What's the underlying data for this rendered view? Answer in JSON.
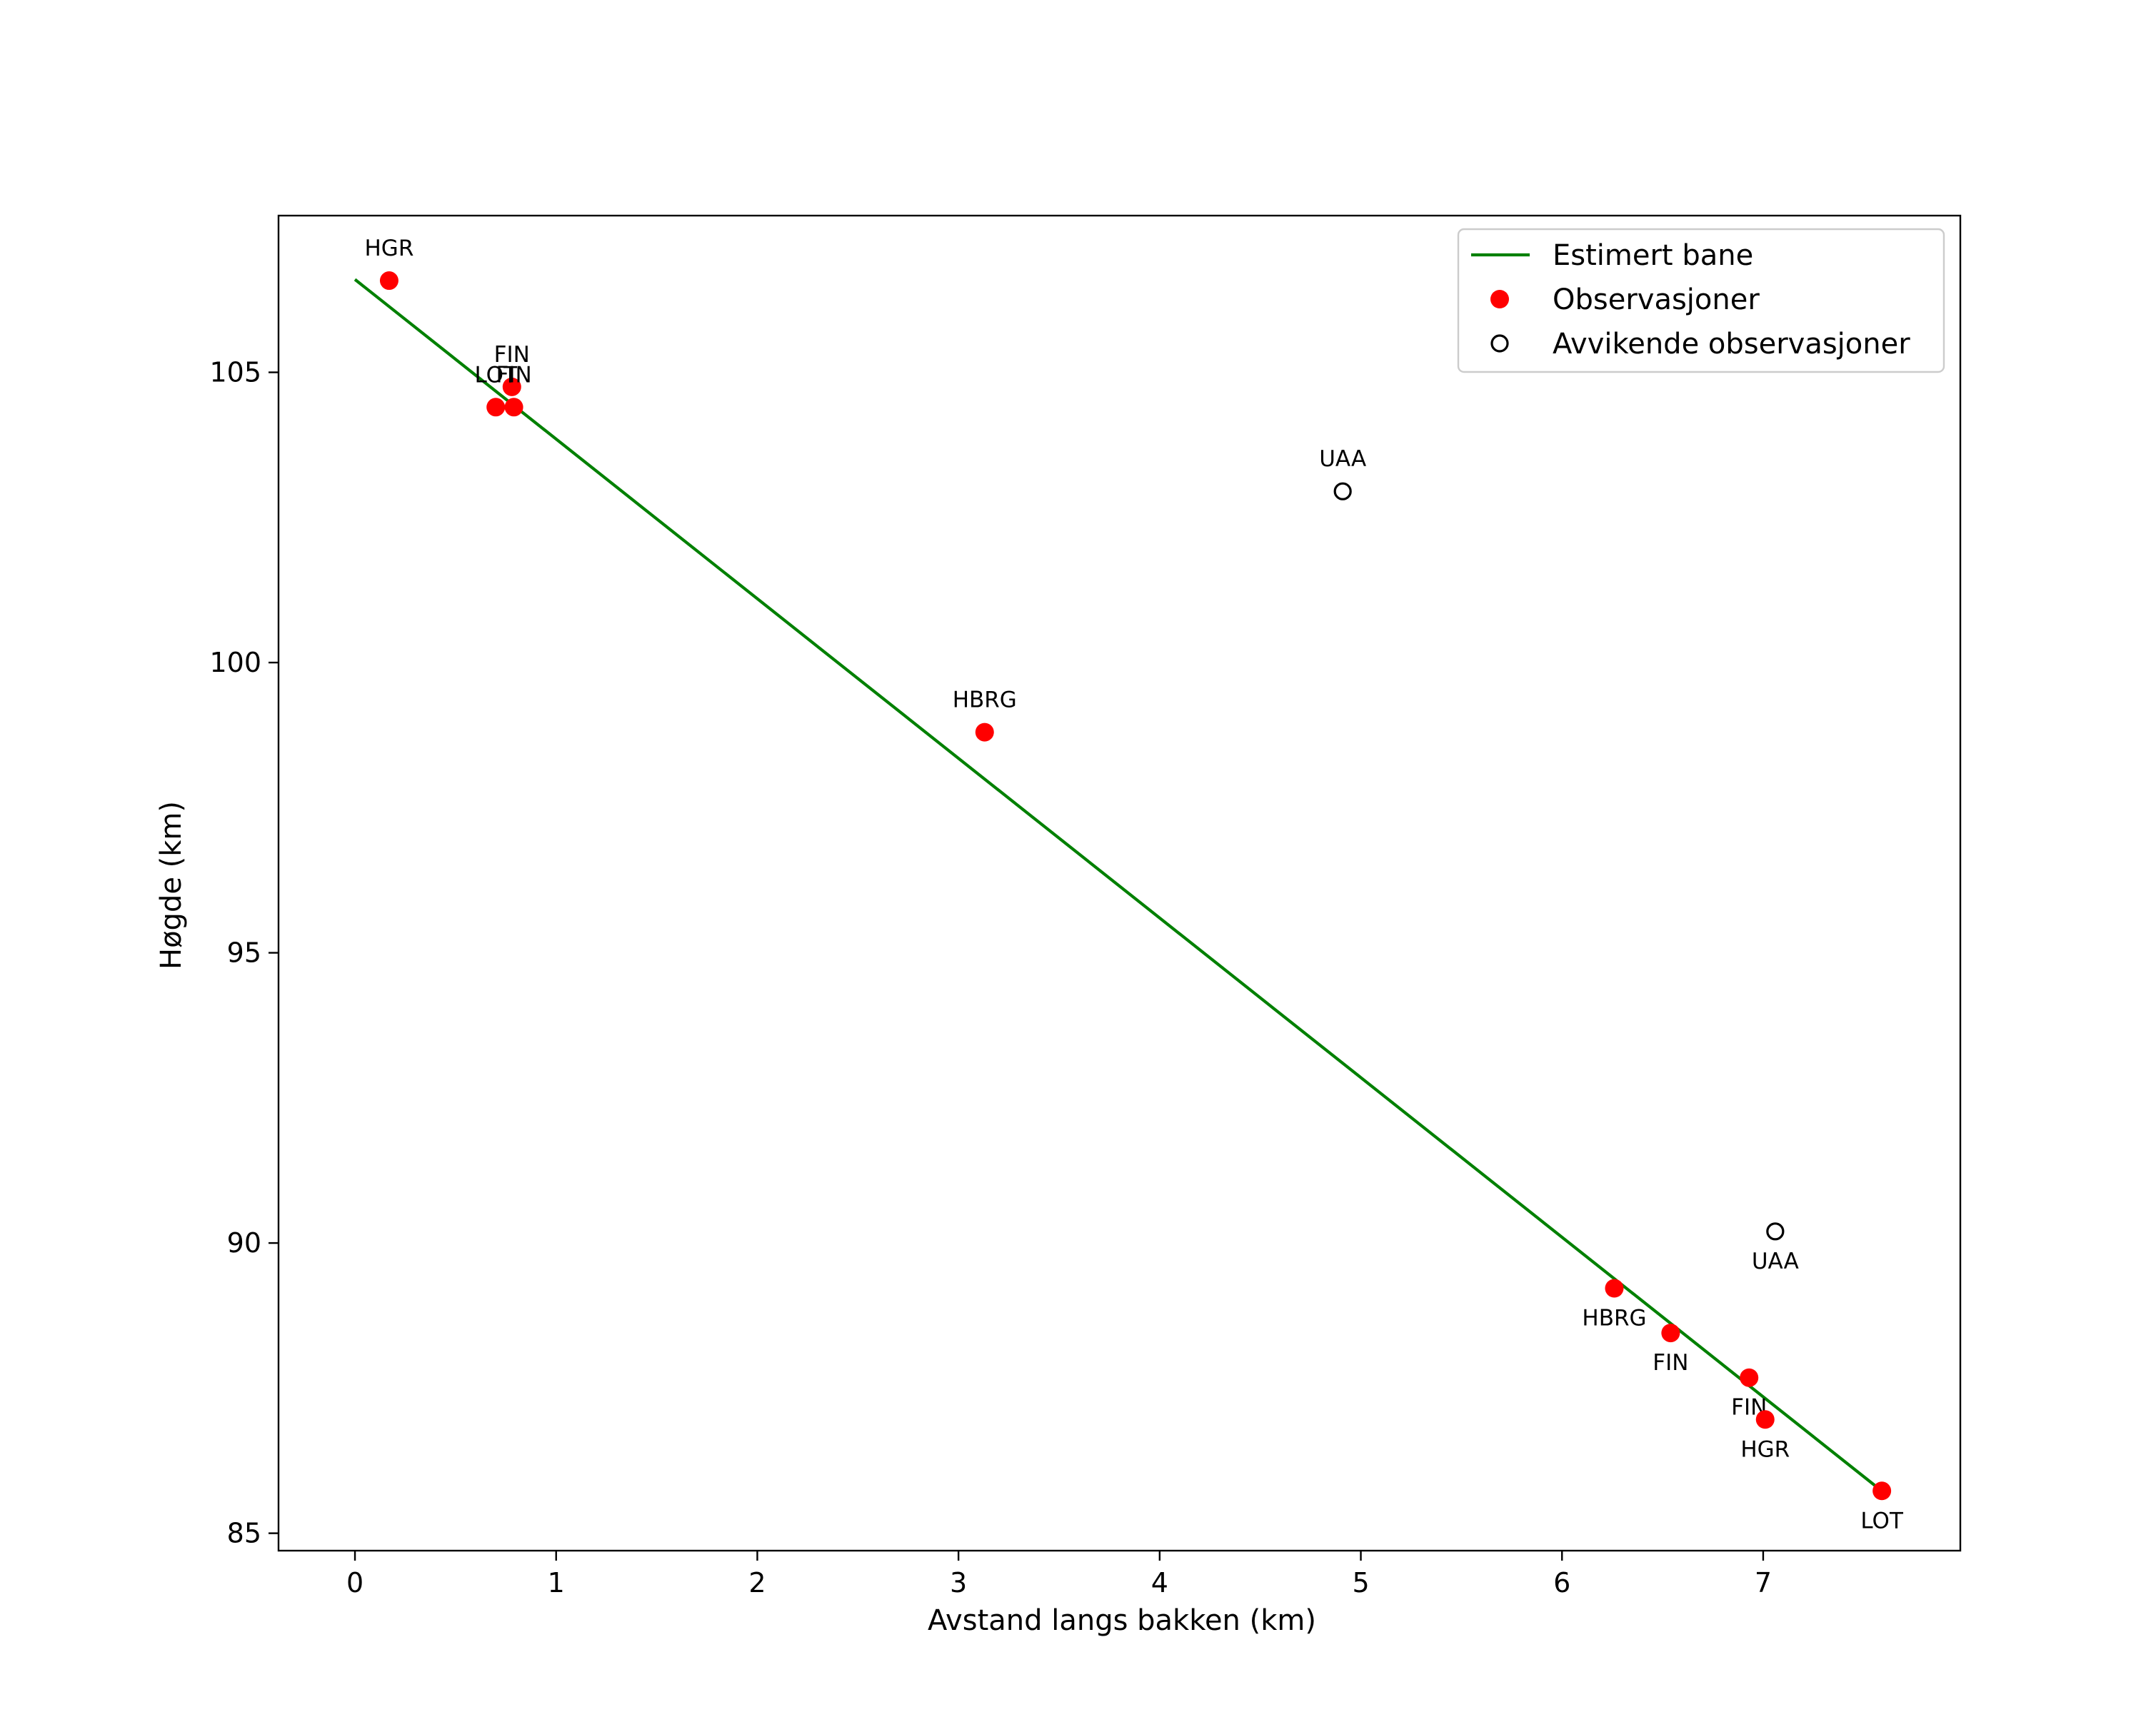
{
  "chart_data": {
    "type": "scatter",
    "title": "",
    "xlabel": "Avstand langs bakken (km)",
    "ylabel": "Høgde (km)",
    "xlim": [
      -0.38,
      7.98
    ],
    "ylim": [
      84.7,
      107.7
    ],
    "xticks": [
      0,
      1,
      2,
      3,
      4,
      5,
      6,
      7
    ],
    "yticks": [
      85,
      90,
      95,
      100,
      105
    ],
    "grid": false,
    "legend_position": "top-right",
    "colors": {
      "line": "#008000",
      "observation": "#ff0000",
      "outlier_edge": "#000000"
    },
    "series": [
      {
        "name": "Estimert bane",
        "kind": "line",
        "x": [
          0.0,
          7.6
        ],
        "y": [
          106.6,
          85.7
        ]
      },
      {
        "name": "Observasjoner",
        "kind": "points",
        "points": [
          {
            "x": 0.17,
            "y": 106.58,
            "label": "HGR",
            "label_side": "above"
          },
          {
            "x": 0.78,
            "y": 104.75,
            "label": "FIN",
            "label_side": "above"
          },
          {
            "x": 0.7,
            "y": 104.4,
            "label": "LOT",
            "label_side": "above"
          },
          {
            "x": 0.79,
            "y": 104.4,
            "label": "FIN",
            "label_side": "above"
          },
          {
            "x": 3.13,
            "y": 98.8,
            "label": "HBRG",
            "label_side": "above"
          },
          {
            "x": 6.26,
            "y": 89.22,
            "label": "HBRG",
            "label_side": "below"
          },
          {
            "x": 6.54,
            "y": 88.45,
            "label": "FIN",
            "label_side": "below"
          },
          {
            "x": 6.93,
            "y": 87.68,
            "label": "FIN",
            "label_side": "below"
          },
          {
            "x": 7.01,
            "y": 86.96,
            "label": "HGR",
            "label_side": "below"
          },
          {
            "x": 7.59,
            "y": 85.73,
            "label": "LOT",
            "label_side": "below"
          }
        ]
      },
      {
        "name": "Avvikende observasjoner",
        "kind": "outliers",
        "points": [
          {
            "x": 4.91,
            "y": 102.95,
            "label": "UAA",
            "label_side": "above"
          },
          {
            "x": 7.06,
            "y": 90.2,
            "label": "UAA",
            "label_side": "below"
          }
        ]
      }
    ]
  }
}
